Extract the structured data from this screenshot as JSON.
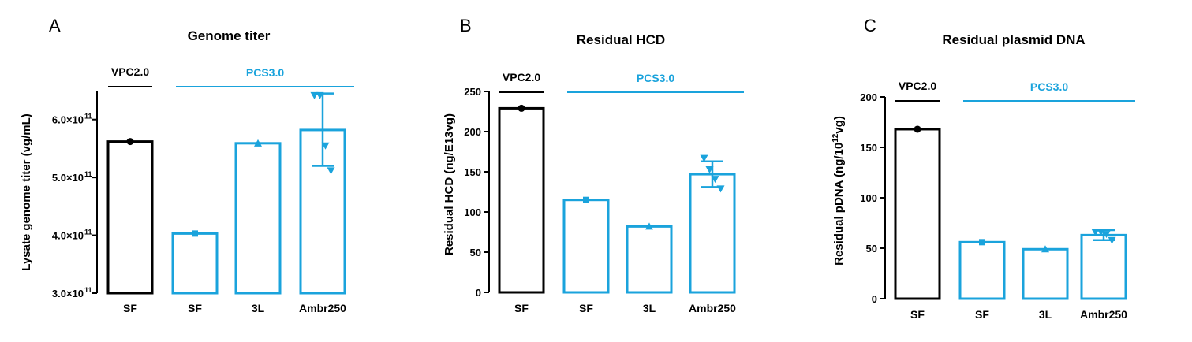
{
  "colors": {
    "vpc": "#000000",
    "pcs": "#1aa3dc"
  },
  "chart_data": [
    {
      "type": "bar",
      "panel": "A",
      "title": "Genome titer",
      "ylabel": "Lysate genome titer (vg/mL)",
      "ylim": [
        300000000000.0,
        650000000000.0
      ],
      "ticks": [
        300000000000.0,
        400000000000.0,
        500000000000.0,
        600000000000.0
      ],
      "tick_labels": [
        {
          "m": "3.0×10",
          "e": "11"
        },
        {
          "m": "4.0×10",
          "e": "11"
        },
        {
          "m": "5.0×10",
          "e": "11"
        },
        {
          "m": "6.0×10",
          "e": "11"
        }
      ],
      "categories": [
        "SF",
        "SF",
        "3L",
        "Ambr250"
      ],
      "groups": [
        {
          "label": "VPC2.0",
          "bars": [
            0
          ],
          "color": "vpc"
        },
        {
          "label": "PCS3.0",
          "bars": [
            1,
            2,
            3
          ],
          "color": "pcs"
        }
      ],
      "values": [
        562000000000.0,
        403000000000.0,
        559000000000.0,
        582000000000.0
      ],
      "errors": [
        null,
        null,
        null,
        [
          520000000000.0,
          645000000000.0
        ]
      ],
      "markers": [
        "circle",
        "square",
        "triangle-up",
        "triangle-down"
      ],
      "points": [
        [
          562000000000.0
        ],
        [
          403000000000.0
        ],
        [
          559000000000.0
        ],
        [
          642000000000.0,
          642000000000.0,
          555000000000.0,
          512000000000.0
        ]
      ]
    },
    {
      "type": "bar",
      "panel": "B",
      "title": "Residual HCD",
      "ylabel": "Residual HCD (ng/E13vg)",
      "ylim": [
        0,
        250
      ],
      "ticks": [
        0,
        50,
        100,
        150,
        200,
        250
      ],
      "tick_labels": [
        "0",
        "50",
        "100",
        "150",
        "200",
        "250"
      ],
      "categories": [
        "SF",
        "SF",
        "3L",
        "Ambr250"
      ],
      "groups": [
        {
          "label": "VPC2.0",
          "bars": [
            0
          ],
          "color": "vpc"
        },
        {
          "label": "PCS3.0",
          "bars": [
            1,
            2,
            3
          ],
          "color": "pcs"
        }
      ],
      "values": [
        229,
        115,
        82,
        147
      ],
      "errors": [
        null,
        null,
        null,
        [
          131,
          163
        ]
      ],
      "markers": [
        "circle",
        "square",
        "triangle-up",
        "triangle-down"
      ],
      "points": [
        [
          229
        ],
        [
          115
        ],
        [
          82
        ],
        [
          167,
          153,
          141,
          129
        ]
      ]
    },
    {
      "type": "bar",
      "panel": "C",
      "title": "Residual plasmid DNA",
      "ylabel": "Residual pDNA (ng/10",
      "ylabel_sup": "12",
      "ylabel_tail": "vg)",
      "ylim": [
        0,
        200
      ],
      "ticks": [
        0,
        50,
        100,
        150,
        200
      ],
      "tick_labels": [
        "0",
        "50",
        "100",
        "150",
        "200"
      ],
      "categories": [
        "SF",
        "SF",
        "3L",
        "Ambr250"
      ],
      "groups": [
        {
          "label": "VPC2.0",
          "bars": [
            0
          ],
          "color": "vpc"
        },
        {
          "label": "PCS3.0",
          "bars": [
            1,
            2,
            3
          ],
          "color": "pcs"
        }
      ],
      "values": [
        168,
        56,
        49,
        63
      ],
      "errors": [
        null,
        null,
        null,
        [
          58,
          68
        ]
      ],
      "markers": [
        "circle",
        "square",
        "triangle-up",
        "triangle-down"
      ],
      "points": [
        [
          168
        ],
        [
          56
        ],
        [
          49
        ],
        [
          66,
          66,
          64,
          58
        ]
      ]
    }
  ]
}
